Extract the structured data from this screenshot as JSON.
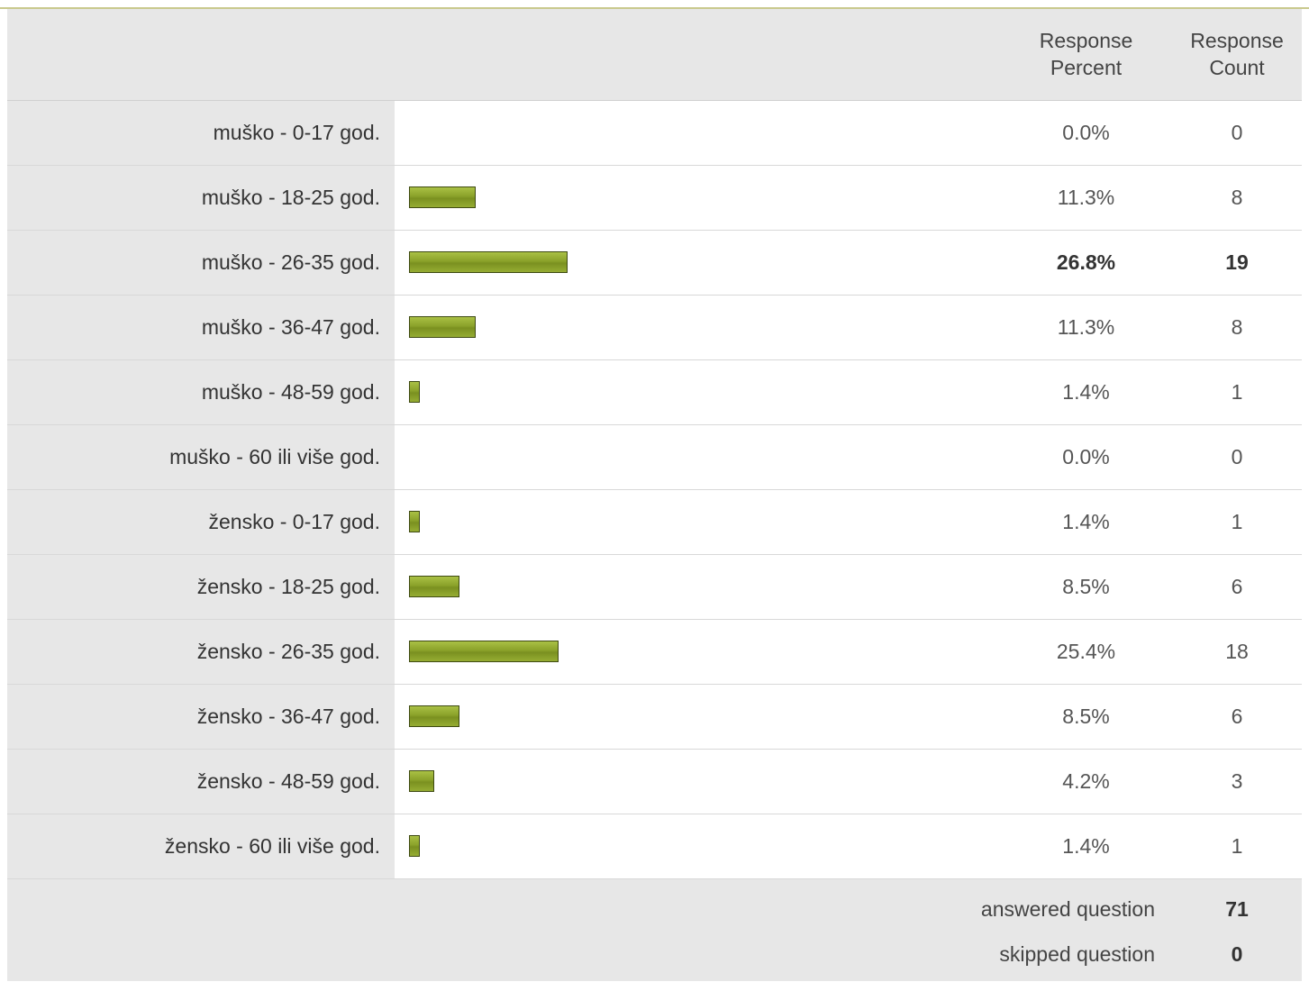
{
  "header": {
    "percent_line1": "Response",
    "percent_line2": "Percent",
    "count_line1": "Response",
    "count_line2": "Count"
  },
  "rows": [
    {
      "label": "muško - 0-17 god.",
      "percent": "0.0%",
      "count": "0",
      "value": 0.0,
      "bold": false
    },
    {
      "label": "muško - 18-25 god.",
      "percent": "11.3%",
      "count": "8",
      "value": 11.3,
      "bold": false
    },
    {
      "label": "muško - 26-35 god.",
      "percent": "26.8%",
      "count": "19",
      "value": 26.8,
      "bold": true
    },
    {
      "label": "muško - 36-47 god.",
      "percent": "11.3%",
      "count": "8",
      "value": 11.3,
      "bold": false
    },
    {
      "label": "muško - 48-59 god.",
      "percent": "1.4%",
      "count": "1",
      "value": 1.4,
      "bold": false
    },
    {
      "label": "muško - 60 ili više god.",
      "percent": "0.0%",
      "count": "0",
      "value": 0.0,
      "bold": false
    },
    {
      "label": "žensko - 0-17 god.",
      "percent": "1.4%",
      "count": "1",
      "value": 1.4,
      "bold": false
    },
    {
      "label": "žensko - 18-25 god.",
      "percent": "8.5%",
      "count": "6",
      "value": 8.5,
      "bold": false
    },
    {
      "label": "žensko - 26-35 god.",
      "percent": "25.4%",
      "count": "18",
      "value": 25.4,
      "bold": false
    },
    {
      "label": "žensko - 36-47 god.",
      "percent": "8.5%",
      "count": "6",
      "value": 8.5,
      "bold": false
    },
    {
      "label": "žensko - 48-59 god.",
      "percent": "4.2%",
      "count": "3",
      "value": 4.2,
      "bold": false
    },
    {
      "label": "žensko - 60 ili više god.",
      "percent": "1.4%",
      "count": "1",
      "value": 1.4,
      "bold": false
    }
  ],
  "footer": {
    "answered_label": "answered question",
    "answered_value": "71",
    "skipped_label": "skipped question",
    "skipped_value": "0"
  },
  "colors": {
    "bar_fill": "#8ba22a",
    "bar_border": "#3e4a12",
    "label_background": "#e7e7e7"
  }
}
